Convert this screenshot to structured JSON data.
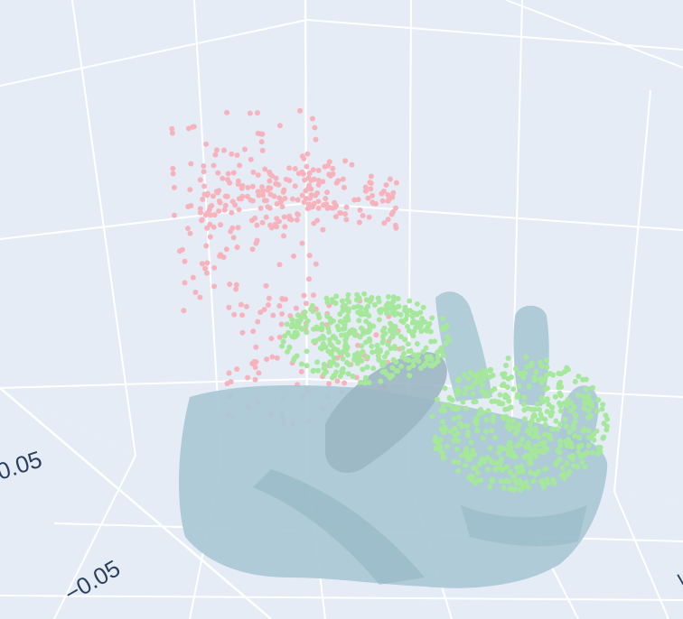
{
  "colors": {
    "pane": "#e5ecf6",
    "grid": "#ffffff",
    "mesh": "#a9c8d4",
    "mesh_edge": "#9bb7c3",
    "point_cloud_a": "#f7b3bc",
    "point_cloud_b": "#a6e89b",
    "tick_text": "#2a3f5f"
  },
  "chart_data": {
    "type": "scatter",
    "subtype": "3d-scatter-with-mesh",
    "title": "",
    "grid": true,
    "legend": "none",
    "axes": {
      "left_axis": {
        "visible_tick_labels": [
          "0.05"
        ]
      },
      "bottom_axis": {
        "visible_tick_labels": [
          "−0.05"
        ]
      },
      "right_axis": {
        "visible_tick_labels": [
          "−"
        ]
      }
    },
    "series": [
      {
        "kind": "scatter3d",
        "color": "#f7b3bc",
        "approx_point_count": 700
      },
      {
        "kind": "scatter3d",
        "color": "#a6e89b",
        "approx_point_count": 1400
      },
      {
        "kind": "mesh3d",
        "color": "#a9c8d4",
        "shape": "hand"
      }
    ]
  }
}
